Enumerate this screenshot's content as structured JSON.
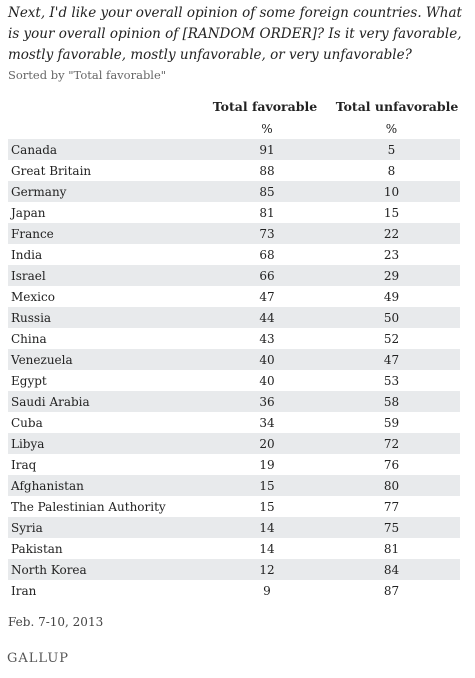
{
  "question": "Next, I'd like your overall opinion of some foreign countries. What is your overall opinion of [RANDOM ORDER]? Is it very favorable, mostly favorable, mostly unfavorable, or very unfavorable?",
  "sorted_note": "Sorted by \"Total favorable\"",
  "columns": {
    "favorable": "Total favorable",
    "unfavorable": "Total unfavorable"
  },
  "units": {
    "favorable": "%",
    "unfavorable": "%"
  },
  "rows": [
    {
      "country": "Canada",
      "favorable": "91",
      "unfavorable": "5"
    },
    {
      "country": "Great Britain",
      "favorable": "88",
      "unfavorable": "8"
    },
    {
      "country": "Germany",
      "favorable": "85",
      "unfavorable": "10"
    },
    {
      "country": "Japan",
      "favorable": "81",
      "unfavorable": "15"
    },
    {
      "country": "France",
      "favorable": "73",
      "unfavorable": "22"
    },
    {
      "country": "India",
      "favorable": "68",
      "unfavorable": "23"
    },
    {
      "country": "Israel",
      "favorable": "66",
      "unfavorable": "29"
    },
    {
      "country": "Mexico",
      "favorable": "47",
      "unfavorable": "49"
    },
    {
      "country": "Russia",
      "favorable": "44",
      "unfavorable": "50"
    },
    {
      "country": "China",
      "favorable": "43",
      "unfavorable": "52"
    },
    {
      "country": "Venezuela",
      "favorable": "40",
      "unfavorable": "47"
    },
    {
      "country": "Egypt",
      "favorable": "40",
      "unfavorable": "53"
    },
    {
      "country": "Saudi Arabia",
      "favorable": "36",
      "unfavorable": "58"
    },
    {
      "country": "Cuba",
      "favorable": "34",
      "unfavorable": "59"
    },
    {
      "country": "Libya",
      "favorable": "20",
      "unfavorable": "72"
    },
    {
      "country": "Iraq",
      "favorable": "19",
      "unfavorable": "76"
    },
    {
      "country": "Afghanistan",
      "favorable": "15",
      "unfavorable": "80"
    },
    {
      "country": "The Palestinian Authority",
      "favorable": "15",
      "unfavorable": "77"
    },
    {
      "country": "Syria",
      "favorable": "14",
      "unfavorable": "75"
    },
    {
      "country": "Pakistan",
      "favorable": "14",
      "unfavorable": "81"
    },
    {
      "country": "North Korea",
      "favorable": "12",
      "unfavorable": "84"
    },
    {
      "country": "Iran",
      "favorable": "9",
      "unfavorable": "87"
    }
  ],
  "date": "Feb. 7-10, 2013",
  "logo": "GALLUP",
  "colors": {
    "stripe": "#e8eaec",
    "text": "#222222"
  }
}
